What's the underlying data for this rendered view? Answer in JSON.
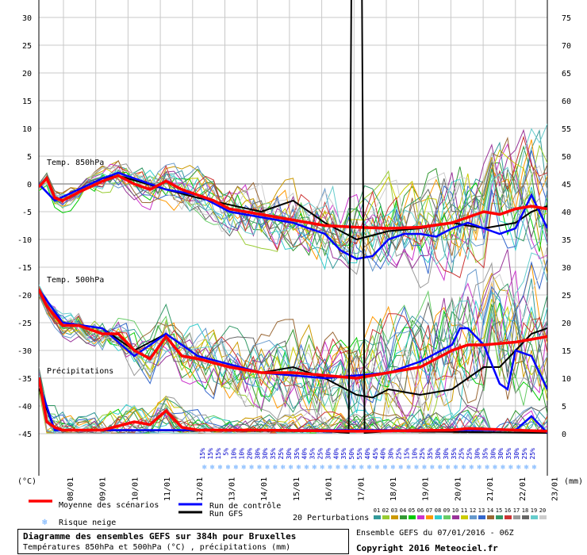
{
  "chart_data": {
    "type": "line",
    "left_axis": {
      "unit": "(°C)",
      "ticks": [
        30,
        25,
        20,
        15,
        10,
        5,
        0,
        -5,
        -10,
        -15,
        -20,
        -25,
        -30,
        -35,
        -40,
        -45
      ],
      "range": [
        -45,
        30
      ]
    },
    "right_axis": {
      "unit": "(mm)",
      "ticks": [
        75,
        70,
        65,
        60,
        55,
        50,
        45,
        40,
        35,
        30,
        25,
        20,
        15,
        10,
        5,
        0
      ],
      "range": [
        0,
        75
      ]
    },
    "x_dates": [
      "08/01",
      "09/01",
      "10/01",
      "11/01",
      "12/01",
      "13/01",
      "14/01",
      "15/01",
      "16/01",
      "17/01",
      "18/01",
      "19/01",
      "20/01",
      "21/01",
      "22/01",
      "23/01"
    ],
    "x_hours": [
      0,
      384
    ],
    "annotations": {
      "temp850": "Temp. 850hPa",
      "temp500": "Temp. 500hPa",
      "precip": "Précipitations"
    },
    "snow_risk_pct": [
      "15%",
      "15%",
      "15%",
      "5%",
      "10%",
      "10%",
      "20%",
      "30%",
      "30%",
      "35%",
      "25%",
      "30%",
      "35%",
      "40%",
      "35%",
      "25%",
      "30%",
      "40%",
      "35%",
      "50%",
      "55%",
      "40%",
      "45%",
      "40%",
      "30%",
      "25%",
      "15%",
      "10%",
      "25%",
      "35%",
      "30%",
      "30%",
      "35%",
      "25%",
      "25%",
      "30%",
      "35%",
      "30%",
      "30%",
      "35%",
      "30%",
      "25%",
      "25%"
    ],
    "series": [
      {
        "name": "Moyenne des scénarios",
        "color": "#ff0000",
        "temp850": [
          [
            0,
            -0.5
          ],
          [
            6,
            1
          ],
          [
            12,
            -2.5
          ],
          [
            18,
            -3
          ],
          [
            30,
            -1.5
          ],
          [
            48,
            0.5
          ],
          [
            60,
            1.5
          ],
          [
            72,
            0
          ],
          [
            84,
            -1
          ],
          [
            96,
            0.5
          ],
          [
            108,
            -1
          ],
          [
            120,
            -2
          ],
          [
            132,
            -3
          ],
          [
            144,
            -4.5
          ],
          [
            168,
            -5.5
          ],
          [
            192,
            -6.5
          ],
          [
            216,
            -7.5
          ],
          [
            240,
            -7.8
          ],
          [
            264,
            -8
          ],
          [
            288,
            -7.8
          ],
          [
            312,
            -7
          ],
          [
            324,
            -6
          ],
          [
            336,
            -5
          ],
          [
            348,
            -5.5
          ],
          [
            360,
            -4.5
          ],
          [
            372,
            -4
          ],
          [
            384,
            -4.5
          ]
        ],
        "temp500": [
          [
            0,
            -19
          ],
          [
            6,
            -22
          ],
          [
            18,
            -25.5
          ],
          [
            30,
            -25.5
          ],
          [
            48,
            -27
          ],
          [
            60,
            -27
          ],
          [
            72,
            -30
          ],
          [
            84,
            -31.5
          ],
          [
            96,
            -27.5
          ],
          [
            108,
            -31
          ],
          [
            120,
            -31.5
          ],
          [
            144,
            -33
          ],
          [
            168,
            -34
          ],
          [
            192,
            -34
          ],
          [
            216,
            -34.5
          ],
          [
            240,
            -35
          ],
          [
            264,
            -34
          ],
          [
            288,
            -33
          ],
          [
            312,
            -30
          ],
          [
            324,
            -29
          ],
          [
            336,
            -29
          ],
          [
            360,
            -28.5
          ],
          [
            372,
            -28
          ],
          [
            384,
            -27.5
          ]
        ],
        "precip": [
          [
            0,
            10
          ],
          [
            6,
            2
          ],
          [
            12,
            1
          ],
          [
            18,
            0.5
          ],
          [
            48,
            0.5
          ],
          [
            72,
            2
          ],
          [
            84,
            1.5
          ],
          [
            96,
            4
          ],
          [
            108,
            1
          ],
          [
            120,
            0.5
          ],
          [
            168,
            0.5
          ],
          [
            240,
            0.3
          ],
          [
            312,
            0.5
          ],
          [
            324,
            0.8
          ],
          [
            384,
            0.3
          ]
        ]
      },
      {
        "name": "Run de contrôle",
        "color": "#0000ff",
        "temp850": [
          [
            0,
            0
          ],
          [
            12,
            -3
          ],
          [
            48,
            1
          ],
          [
            60,
            2
          ],
          [
            96,
            -1
          ],
          [
            120,
            -2
          ],
          [
            144,
            -5
          ],
          [
            168,
            -6
          ],
          [
            192,
            -7
          ],
          [
            216,
            -9
          ],
          [
            228,
            -12
          ],
          [
            240,
            -13.5
          ],
          [
            252,
            -13
          ],
          [
            264,
            -10
          ],
          [
            276,
            -9
          ],
          [
            288,
            -9
          ],
          [
            300,
            -9.5
          ],
          [
            312,
            -8
          ],
          [
            324,
            -7
          ],
          [
            336,
            -8
          ],
          [
            348,
            -9
          ],
          [
            360,
            -8
          ],
          [
            372,
            -2
          ],
          [
            384,
            -8
          ]
        ],
        "temp500": [
          [
            0,
            -19
          ],
          [
            18,
            -25
          ],
          [
            48,
            -26
          ],
          [
            72,
            -31
          ],
          [
            96,
            -27
          ],
          [
            120,
            -31
          ],
          [
            168,
            -34
          ],
          [
            216,
            -35
          ],
          [
            264,
            -34
          ],
          [
            288,
            -32
          ],
          [
            312,
            -29
          ],
          [
            318,
            -26
          ],
          [
            324,
            -26
          ],
          [
            336,
            -29
          ],
          [
            348,
            -36
          ],
          [
            354,
            -37
          ],
          [
            360,
            -30
          ],
          [
            372,
            -31
          ],
          [
            384,
            -37
          ]
        ],
        "precip": [
          [
            0,
            9
          ],
          [
            12,
            0.5
          ],
          [
            360,
            0.5
          ],
          [
            372,
            3
          ],
          [
            384,
            0
          ]
        ]
      },
      {
        "name": "Run GFS",
        "color": "#000000",
        "temp850": [
          [
            0,
            0
          ],
          [
            12,
            -3
          ],
          [
            48,
            1
          ],
          [
            60,
            1.5
          ],
          [
            96,
            -1
          ],
          [
            120,
            -2.5
          ],
          [
            168,
            -5
          ],
          [
            180,
            -4
          ],
          [
            192,
            -3
          ],
          [
            216,
            -7
          ],
          [
            240,
            -10
          ],
          [
            264,
            -8.5
          ],
          [
            288,
            -8
          ],
          [
            312,
            -7
          ],
          [
            336,
            -8
          ],
          [
            360,
            -7
          ],
          [
            372,
            -5
          ],
          [
            384,
            -4
          ]
        ],
        "temp500": [
          [
            0,
            -19
          ],
          [
            18,
            -25
          ],
          [
            48,
            -26
          ],
          [
            72,
            -30
          ],
          [
            96,
            -27
          ],
          [
            120,
            -31
          ],
          [
            168,
            -34
          ],
          [
            192,
            -33
          ],
          [
            216,
            -35
          ],
          [
            240,
            -38
          ],
          [
            252,
            -38.5
          ],
          [
            264,
            -37
          ],
          [
            288,
            -38
          ],
          [
            312,
            -37
          ],
          [
            324,
            -35
          ],
          [
            336,
            -33
          ],
          [
            348,
            -33
          ],
          [
            360,
            -30
          ],
          [
            372,
            -27
          ],
          [
            384,
            -26
          ]
        ],
        "precip": [
          [
            0,
            8
          ],
          [
            12,
            0.5
          ],
          [
            216,
            0.3
          ],
          [
            234,
            0
          ],
          [
            236,
            80
          ],
          [
            240,
            80
          ],
          [
            244,
            80
          ],
          [
            246,
            0
          ],
          [
            264,
            0.3
          ],
          [
            384,
            0
          ]
        ]
      }
    ],
    "legend": {
      "mean": "Moyenne des scénarios",
      "control": "Run de contrôle",
      "gfs": "Run GFS",
      "snow": "Risque neige",
      "perturb": "20 Perturbations",
      "perturb_ids": [
        "01",
        "02",
        "03",
        "04",
        "05",
        "06",
        "07",
        "08",
        "09",
        "10",
        "11",
        "12",
        "13",
        "14",
        "15",
        "16",
        "17",
        "18",
        "19",
        "20"
      ],
      "perturb_colors": [
        "#339999",
        "#99cc33",
        "#cc9900",
        "#339933",
        "#00cc00",
        "#cc33cc",
        "#ff9900",
        "#33cccc",
        "#66cc66",
        "#993399",
        "#cccc00",
        "#6699cc",
        "#3366cc",
        "#996633",
        "#339966",
        "#cc3333",
        "#999999",
        "#666666",
        "#66cccc",
        "#cccccc"
      ]
    },
    "grid": true
  },
  "title": {
    "line1": "Diagramme des ensembles GEFS sur 384h pour Bruxelles",
    "line2": "Températures 850hPa et 500hPa (°C) , précipitations (mm)"
  },
  "info": {
    "run": "Ensemble GEFS du 07/01/2016 - 06Z",
    "copyright": "Copyright 2016 Meteociel.fr"
  }
}
